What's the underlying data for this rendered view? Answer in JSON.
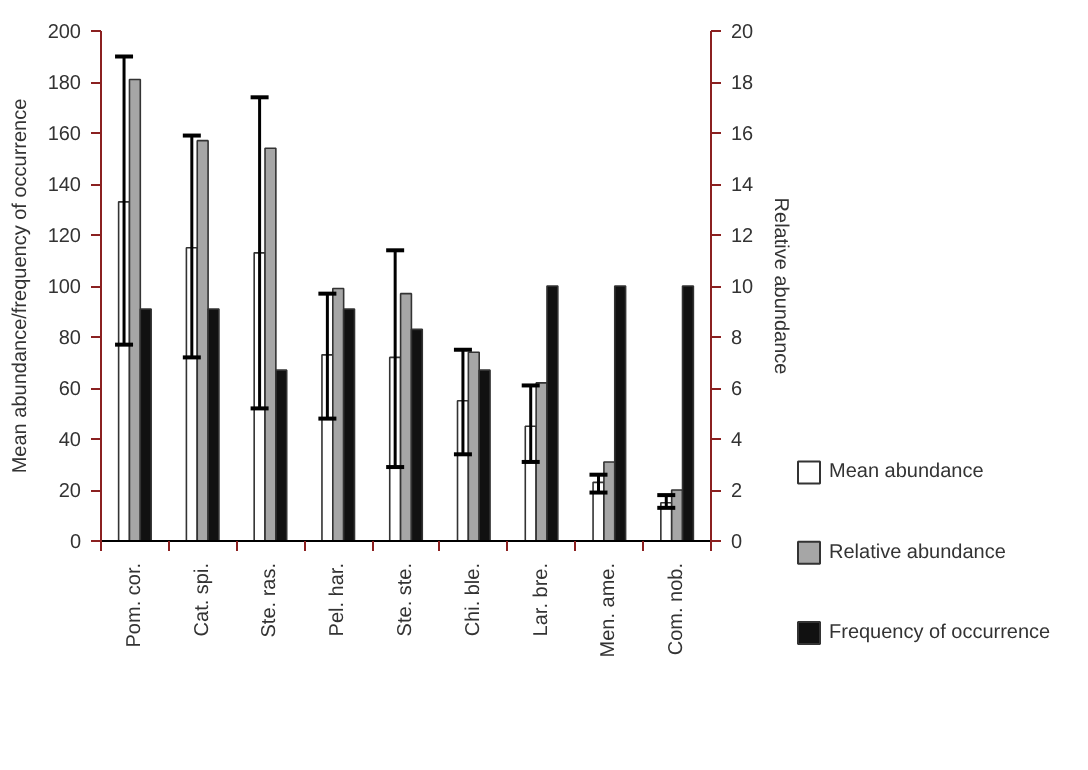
{
  "chart_data": {
    "type": "bar",
    "categories": [
      "Pom. cor.",
      "Cat. spi.",
      "Ste. ras.",
      "Pel. har.",
      "Ste. ste.",
      "Chi. ble.",
      "Lar. bre.",
      "Men. ame.",
      "Com. nob."
    ],
    "ylabel": "Mean abundance/frequency of occurrence",
    "y2label": "Relative abundance",
    "ylim": [
      0,
      200
    ],
    "yticks": [
      0,
      20,
      40,
      60,
      80,
      100,
      120,
      140,
      160,
      180,
      200
    ],
    "y2lim": [
      0,
      20
    ],
    "y2ticks": [
      0,
      2,
      4,
      6,
      8,
      10,
      12,
      14,
      16,
      18,
      20
    ],
    "series": [
      {
        "name": "Mean abundance",
        "color": "#ffffff",
        "values": [
          133,
          115,
          113,
          73,
          72,
          55,
          45,
          23,
          15
        ],
        "errors": [
          [
            77,
            190
          ],
          [
            72,
            159
          ],
          [
            52,
            174
          ],
          [
            48,
            97
          ],
          [
            29,
            114
          ],
          [
            34,
            75
          ],
          [
            31,
            61
          ],
          [
            19,
            26
          ],
          [
            13,
            18
          ]
        ]
      },
      {
        "name": "Relative abundance",
        "color": "#a6a6a6",
        "axis": "y2",
        "values": [
          18.1,
          15.7,
          15.4,
          9.9,
          9.7,
          7.4,
          6.2,
          3.1,
          2.0
        ]
      },
      {
        "name": "Frequency of occurrence",
        "color": "#111111",
        "values": [
          91,
          91,
          67,
          91,
          83,
          67,
          100,
          100,
          100
        ]
      }
    ],
    "legend": "bottom right",
    "grid": false
  }
}
